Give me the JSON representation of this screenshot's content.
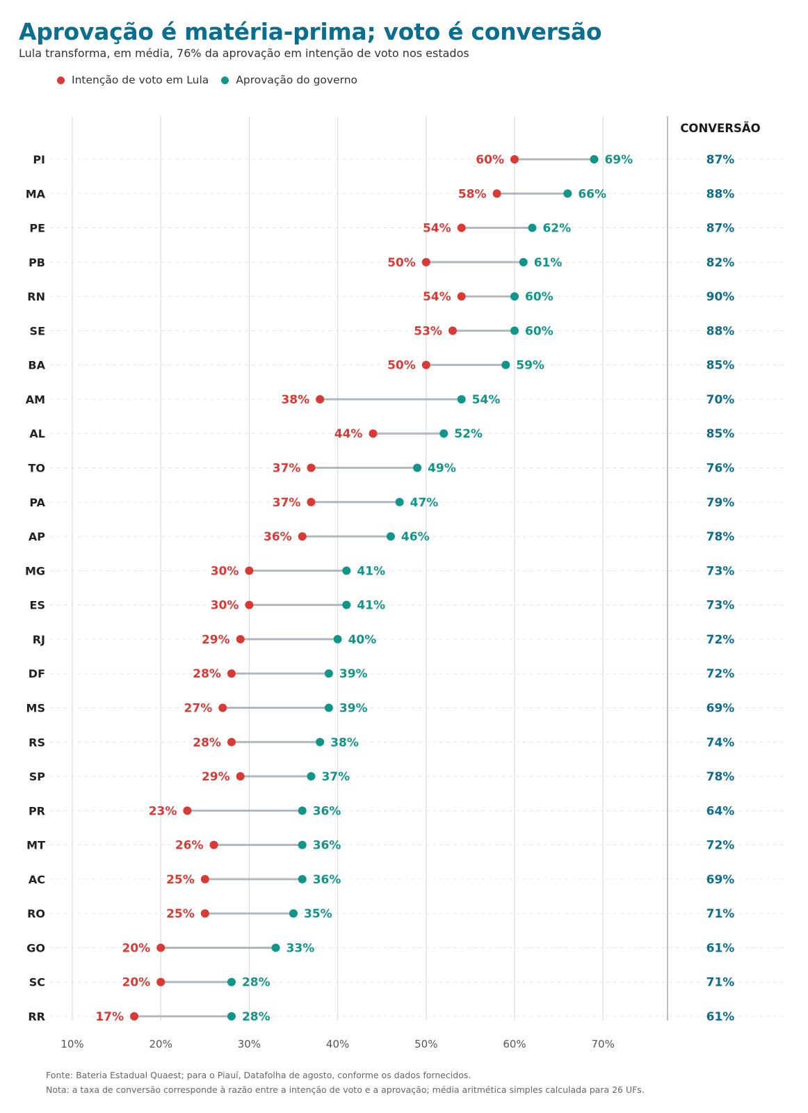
{
  "header": {
    "title": "Aprovação é matéria-prima; voto é conversão",
    "subtitle": "Lula transforma, em média, 76% da aprovação em intenção de voto nos estados"
  },
  "legend": {
    "vote_label": "Intenção de voto em Lula",
    "approval_label": "Aprovação do governo"
  },
  "colors": {
    "vote": "#d93a35",
    "approval": "#10958a",
    "conversion": "#0b6e8e",
    "title": "#0b6e8e",
    "connector": "#b0b8bd",
    "grid": "#dcdcdc"
  },
  "footer": {
    "source": "Fonte: Bateria Estadual Quaest; para o Piauí, Datafolha de agosto, conforme os dados fornecidos.",
    "note": "Nota: a taxa de conversão corresponde à razão entre a intenção de voto e a aprovação; média aritmética simples calculada para 26 UFs."
  },
  "chart_data": {
    "type": "dumbbell",
    "conversion_header": "CONVERSÃO",
    "x_ticks": [
      10,
      20,
      30,
      40,
      50,
      60,
      70
    ],
    "x_tick_labels": [
      "10%",
      "20%",
      "30%",
      "40%",
      "50%",
      "60%",
      "70%"
    ],
    "xlim": [
      10,
      70
    ],
    "grid": true,
    "legend_position": "top-left",
    "series": [
      {
        "name": "Intenção de voto em Lula",
        "key": "vote"
      },
      {
        "name": "Aprovação do governo",
        "key": "approval"
      }
    ],
    "rows": [
      {
        "state": "PI",
        "vote": 60,
        "approval": 69,
        "conversion": 87
      },
      {
        "state": "MA",
        "vote": 58,
        "approval": 66,
        "conversion": 88
      },
      {
        "state": "PE",
        "vote": 54,
        "approval": 62,
        "conversion": 87
      },
      {
        "state": "PB",
        "vote": 50,
        "approval": 61,
        "conversion": 82
      },
      {
        "state": "RN",
        "vote": 54,
        "approval": 60,
        "conversion": 90
      },
      {
        "state": "SE",
        "vote": 53,
        "approval": 60,
        "conversion": 88
      },
      {
        "state": "BA",
        "vote": 50,
        "approval": 59,
        "conversion": 85
      },
      {
        "state": "AM",
        "vote": 38,
        "approval": 54,
        "conversion": 70
      },
      {
        "state": "AL",
        "vote": 44,
        "approval": 52,
        "conversion": 85
      },
      {
        "state": "TO",
        "vote": 37,
        "approval": 49,
        "conversion": 76
      },
      {
        "state": "PA",
        "vote": 37,
        "approval": 47,
        "conversion": 79
      },
      {
        "state": "AP",
        "vote": 36,
        "approval": 46,
        "conversion": 78
      },
      {
        "state": "MG",
        "vote": 30,
        "approval": 41,
        "conversion": 73
      },
      {
        "state": "ES",
        "vote": 30,
        "approval": 41,
        "conversion": 73
      },
      {
        "state": "RJ",
        "vote": 29,
        "approval": 40,
        "conversion": 72
      },
      {
        "state": "DF",
        "vote": 28,
        "approval": 39,
        "conversion": 72
      },
      {
        "state": "MS",
        "vote": 27,
        "approval": 39,
        "conversion": 69
      },
      {
        "state": "RS",
        "vote": 28,
        "approval": 38,
        "conversion": 74
      },
      {
        "state": "SP",
        "vote": 29,
        "approval": 37,
        "conversion": 78
      },
      {
        "state": "PR",
        "vote": 23,
        "approval": 36,
        "conversion": 64
      },
      {
        "state": "MT",
        "vote": 26,
        "approval": 36,
        "conversion": 72
      },
      {
        "state": "AC",
        "vote": 25,
        "approval": 36,
        "conversion": 69
      },
      {
        "state": "RO",
        "vote": 25,
        "approval": 35,
        "conversion": 71
      },
      {
        "state": "GO",
        "vote": 20,
        "approval": 33,
        "conversion": 61
      },
      {
        "state": "SC",
        "vote": 20,
        "approval": 28,
        "conversion": 71
      },
      {
        "state": "RR",
        "vote": 17,
        "approval": 28,
        "conversion": 61
      }
    ]
  }
}
